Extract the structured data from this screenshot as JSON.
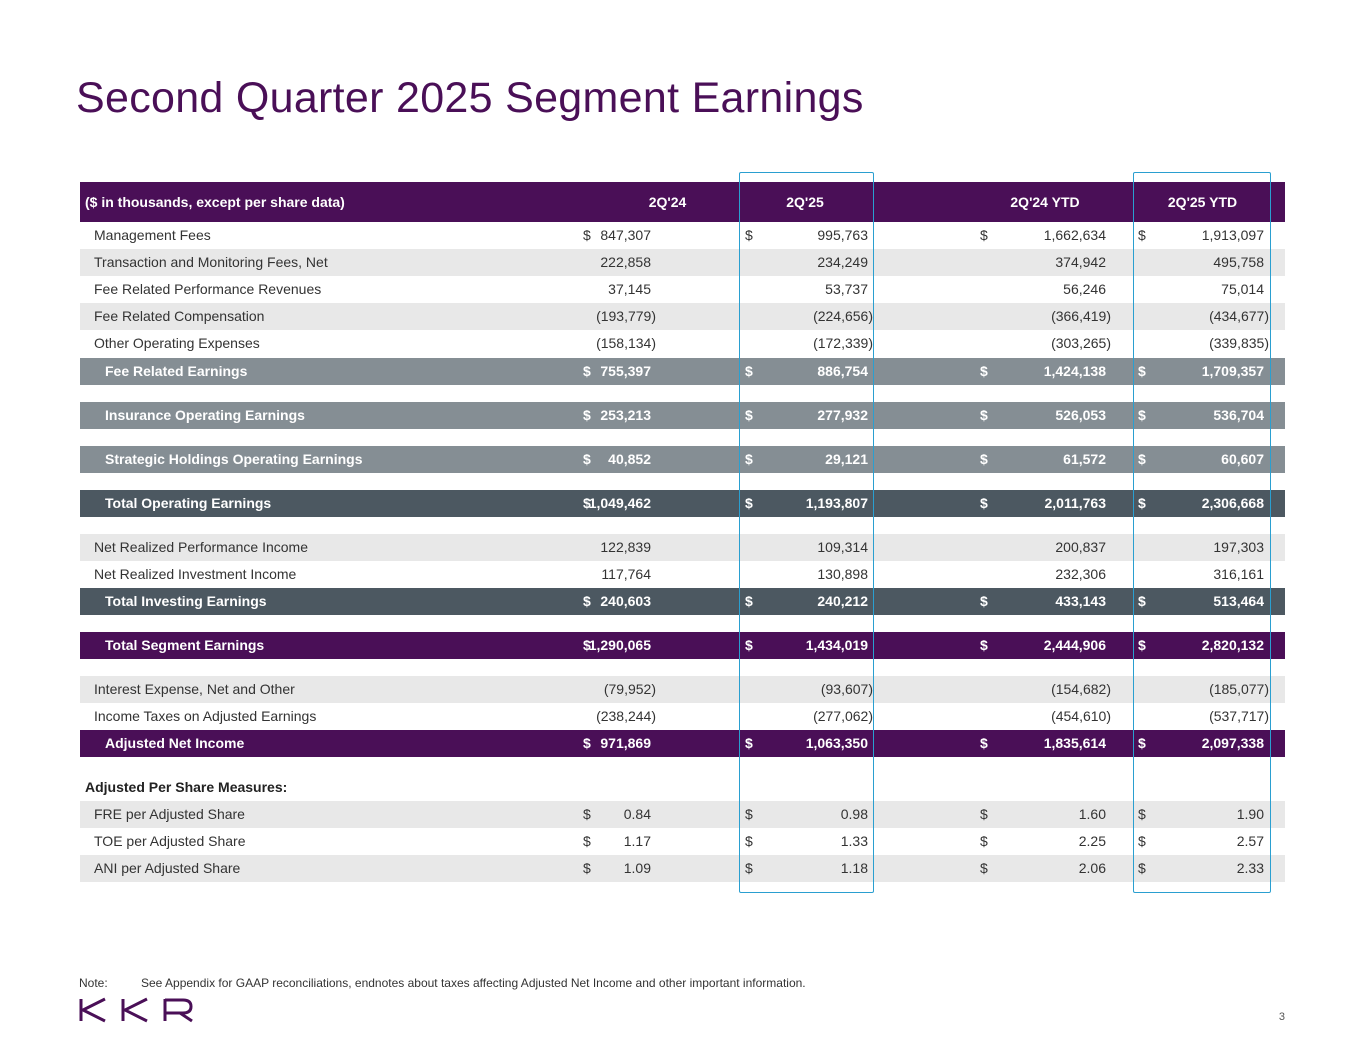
{
  "title": "Second Quarter 2025 Segment Earnings",
  "header": {
    "label": "($ in thousands, except per share data)",
    "columns": [
      "2Q'24",
      "2Q'25",
      "2Q'24 YTD",
      "2Q'25 YTD"
    ]
  },
  "currency_symbol": "$",
  "rows": [
    {
      "label": "Management Fees",
      "values": [
        "847,307",
        "995,763",
        "1,662,634",
        "1,913,097"
      ]
    },
    {
      "label": "Transaction and Monitoring Fees, Net",
      "values": [
        "222,858",
        "234,249",
        "374,942",
        "495,758"
      ]
    },
    {
      "label": "Fee Related Performance Revenues",
      "values": [
        "37,145",
        "53,737",
        "56,246",
        "75,014"
      ]
    },
    {
      "label": "Fee Related Compensation",
      "values": [
        "(193,779)",
        "(224,656)",
        "(366,419)",
        "(434,677)"
      ]
    },
    {
      "label": "Other Operating Expenses",
      "values": [
        "(158,134)",
        "(172,339)",
        "(303,265)",
        "(339,835)"
      ]
    },
    {
      "label": "Fee Related Earnings",
      "values": [
        "755,397",
        "886,754",
        "1,424,138",
        "1,709,357"
      ]
    },
    {
      "label": "Insurance Operating Earnings",
      "values": [
        "253,213",
        "277,932",
        "526,053",
        "536,704"
      ]
    },
    {
      "label": "Strategic Holdings Operating Earnings",
      "values": [
        "40,852",
        "29,121",
        "61,572",
        "60,607"
      ]
    },
    {
      "label": "Total Operating Earnings",
      "values": [
        "1,049,462",
        "1,193,807",
        "2,011,763",
        "2,306,668"
      ]
    },
    {
      "label": "Net Realized Performance Income",
      "values": [
        "122,839",
        "109,314",
        "200,837",
        "197,303"
      ]
    },
    {
      "label": "Net Realized Investment Income",
      "values": [
        "117,764",
        "130,898",
        "232,306",
        "316,161"
      ]
    },
    {
      "label": "Total Investing Earnings",
      "values": [
        "240,603",
        "240,212",
        "433,143",
        "513,464"
      ]
    },
    {
      "label": "Total Segment Earnings",
      "values": [
        "1,290,065",
        "1,434,019",
        "2,444,906",
        "2,820,132"
      ]
    },
    {
      "label": "Interest Expense, Net and Other",
      "values": [
        "(79,952)",
        "(93,607)",
        "(154,682)",
        "(185,077)"
      ]
    },
    {
      "label": "Income Taxes on Adjusted Earnings",
      "values": [
        "(238,244)",
        "(277,062)",
        "(454,610)",
        "(537,717)"
      ]
    },
    {
      "label": "Adjusted Net Income",
      "values": [
        "971,869",
        "1,063,350",
        "1,835,614",
        "2,097,338"
      ]
    },
    {
      "label": "Adjusted Per Share Measures:",
      "values": [
        "",
        "",
        "",
        ""
      ]
    },
    {
      "label": "FRE per Adjusted Share",
      "values": [
        "0.84",
        "0.98",
        "1.60",
        "1.90"
      ]
    },
    {
      "label": "TOE per Adjusted Share",
      "values": [
        "1.17",
        "1.33",
        "2.25",
        "2.57"
      ]
    },
    {
      "label": "ANI per Adjusted Share",
      "values": [
        "1.09",
        "1.18",
        "2.06",
        "2.33"
      ]
    }
  ],
  "note_label": "Note:",
  "note_text": "See Appendix for GAAP reconciliations, endnotes about taxes affecting Adjusted Net Income and other important information.",
  "logo_text": "KKR",
  "page_number": "3"
}
